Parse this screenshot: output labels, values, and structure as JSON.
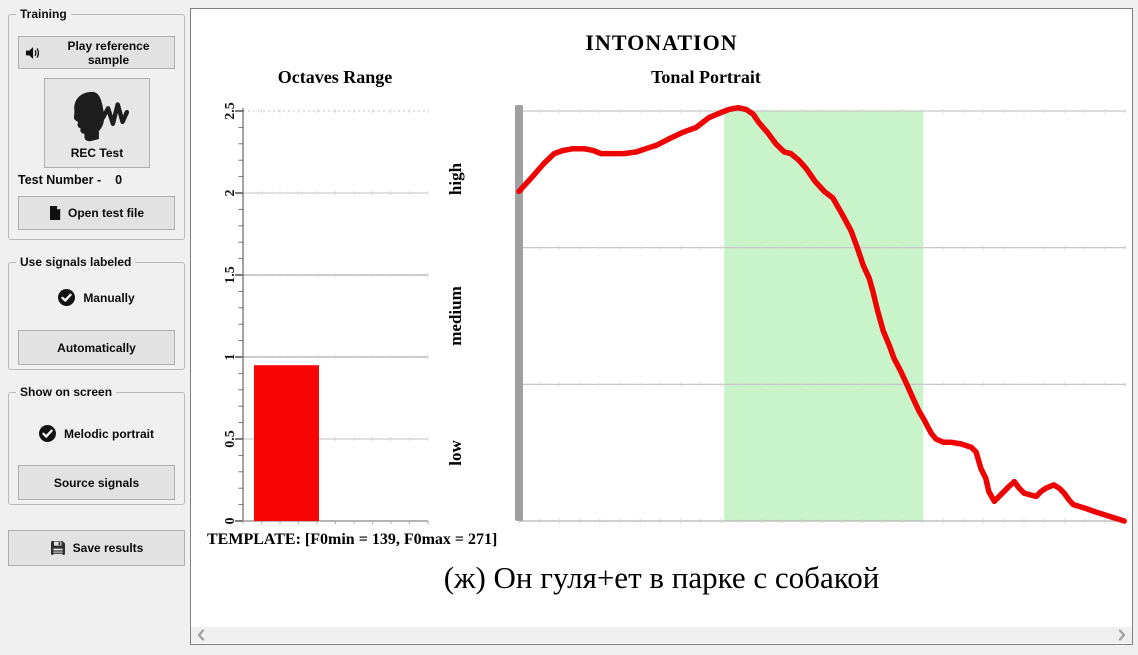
{
  "colors": {
    "window_bg": "#f0f0f0",
    "panel_bg": "#ffffff",
    "accent_red": "#ee0202",
    "highlight_green": "#c9f4c9",
    "axis_gray": "#a0a0a0",
    "grid_gray": "#bdbdbd",
    "button_bg": "#e2e2e2",
    "button_border": "#aeaeae"
  },
  "sidebar": {
    "training": {
      "label": "Training",
      "play_button": "Play reference sample",
      "rec_button": "REC Test",
      "test_number_label": "Test Number -",
      "test_number_value": "0",
      "open_button": "Open test file"
    },
    "use_signals_labeled": {
      "label": "Use signals labeled",
      "manually_option": "Manually",
      "automatically_button": "Automatically"
    },
    "show_on_screen": {
      "label": "Show on screen",
      "melodic_option": "Melodic portrait",
      "source_button": "Source signals"
    },
    "save_button": "Save results",
    "icons": {
      "play": "speaker-icon",
      "rec": "speaking-face-icon",
      "open": "file-icon",
      "manually": "check-circle-icon",
      "melodic": "check-circle-icon",
      "save": "save-icon"
    }
  },
  "main": {
    "title": "INTONATION",
    "template_info": "TEMPLATE: [F0min = 139, F0max = 271]",
    "sentence": "(ж) Он гуля+ет в парке с собакой",
    "scrollbar": {
      "left_icon": "chevron-left-icon",
      "right_icon": "chevron-right-icon"
    }
  },
  "chart_data": [
    {
      "type": "bar",
      "title": "Octaves Range",
      "categories": [
        ""
      ],
      "values": [
        0.95
      ],
      "ylim": [
        0,
        2.5
      ],
      "yticks": [
        0,
        0.5,
        1,
        1.5,
        2,
        2.5
      ],
      "bar_color": "#f80505",
      "grid": true,
      "legend": "none"
    },
    {
      "type": "line",
      "title": "Tonal Portrait",
      "ylim": [
        0,
        2.5
      ],
      "xlim_normalized": [
        0,
        1
      ],
      "band_labels": [
        "high",
        "medium",
        "low"
      ],
      "band_boundaries": [
        2.5,
        1.667,
        0.833,
        0
      ],
      "highlight_region": {
        "x_start": 0.338,
        "x_end": 0.666,
        "color": "#c9f4c9"
      },
      "line_color": "#ee0202",
      "line_width": 5.5,
      "grid": true,
      "points": [
        [
          0.0,
          2.01
        ],
        [
          0.02,
          2.09
        ],
        [
          0.041,
          2.18
        ],
        [
          0.058,
          2.24
        ],
        [
          0.073,
          2.26
        ],
        [
          0.089,
          2.27
        ],
        [
          0.107,
          2.27
        ],
        [
          0.122,
          2.26
        ],
        [
          0.135,
          2.24
        ],
        [
          0.155,
          2.24
        ],
        [
          0.173,
          2.24
        ],
        [
          0.193,
          2.25
        ],
        [
          0.209,
          2.27
        ],
        [
          0.226,
          2.29
        ],
        [
          0.247,
          2.33
        ],
        [
          0.27,
          2.37
        ],
        [
          0.292,
          2.4
        ],
        [
          0.313,
          2.46
        ],
        [
          0.333,
          2.49
        ],
        [
          0.346,
          2.51
        ],
        [
          0.361,
          2.52
        ],
        [
          0.374,
          2.51
        ],
        [
          0.386,
          2.48
        ],
        [
          0.395,
          2.43
        ],
        [
          0.409,
          2.37
        ],
        [
          0.423,
          2.3
        ],
        [
          0.437,
          2.25
        ],
        [
          0.448,
          2.24
        ],
        [
          0.461,
          2.2
        ],
        [
          0.473,
          2.15
        ],
        [
          0.488,
          2.07
        ],
        [
          0.503,
          2.01
        ],
        [
          0.517,
          1.97
        ],
        [
          0.531,
          1.88
        ],
        [
          0.547,
          1.77
        ],
        [
          0.557,
          1.67
        ],
        [
          0.567,
          1.56
        ],
        [
          0.577,
          1.48
        ],
        [
          0.583,
          1.4
        ],
        [
          0.591,
          1.28
        ],
        [
          0.6,
          1.16
        ],
        [
          0.61,
          1.07
        ],
        [
          0.618,
          0.99
        ],
        [
          0.628,
          0.92
        ],
        [
          0.638,
          0.84
        ],
        [
          0.649,
          0.75
        ],
        [
          0.659,
          0.67
        ],
        [
          0.667,
          0.62
        ],
        [
          0.674,
          0.57
        ],
        [
          0.68,
          0.53
        ],
        [
          0.687,
          0.5
        ],
        [
          0.699,
          0.48
        ],
        [
          0.712,
          0.48
        ],
        [
          0.728,
          0.47
        ],
        [
          0.745,
          0.45
        ],
        [
          0.753,
          0.42
        ],
        [
          0.761,
          0.32
        ],
        [
          0.769,
          0.26
        ],
        [
          0.774,
          0.18
        ],
        [
          0.783,
          0.12
        ],
        [
          0.791,
          0.15
        ],
        [
          0.799,
          0.18
        ],
        [
          0.807,
          0.21
        ],
        [
          0.816,
          0.24
        ],
        [
          0.824,
          0.2
        ],
        [
          0.832,
          0.17
        ],
        [
          0.842,
          0.16
        ],
        [
          0.852,
          0.15
        ],
        [
          0.86,
          0.18
        ],
        [
          0.868,
          0.2
        ],
        [
          0.881,
          0.22
        ],
        [
          0.89,
          0.2
        ],
        [
          0.898,
          0.17
        ],
        [
          0.906,
          0.13
        ],
        [
          0.913,
          0.1
        ],
        [
          0.931,
          0.08
        ],
        [
          0.954,
          0.05
        ],
        [
          0.98,
          0.02
        ],
        [
          0.997,
          0.0
        ]
      ]
    }
  ]
}
